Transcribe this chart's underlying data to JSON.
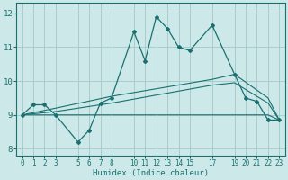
{
  "title": "",
  "xlabel": "Humidex (Indice chaleur)",
  "ylabel": "",
  "xlim": [
    -0.5,
    23.5
  ],
  "ylim": [
    7.8,
    12.3
  ],
  "yticks": [
    8,
    9,
    10,
    11,
    12
  ],
  "xticks": [
    0,
    1,
    2,
    3,
    5,
    6,
    7,
    8,
    10,
    11,
    12,
    13,
    14,
    15,
    17,
    19,
    20,
    21,
    22,
    23
  ],
  "background_color": "#cce8e8",
  "grid_color": "#aacccc",
  "line_color": "#1a7070",
  "line1_x": [
    0,
    1,
    2,
    3,
    5,
    6,
    7,
    8,
    10,
    11,
    12,
    13,
    14,
    15,
    17,
    19,
    20,
    21,
    22,
    23
  ],
  "line1_y": [
    9.0,
    9.3,
    9.3,
    9.0,
    8.2,
    8.55,
    9.35,
    9.5,
    11.45,
    10.6,
    11.9,
    11.55,
    11.0,
    10.9,
    11.65,
    10.2,
    9.5,
    9.4,
    8.85,
    8.85
  ],
  "line2_x": [
    0,
    3,
    8,
    17,
    19,
    22,
    23
  ],
  "line2_y": [
    9.0,
    9.2,
    9.55,
    10.05,
    10.2,
    9.5,
    8.85
  ],
  "line3_x": [
    0,
    3,
    8,
    17,
    19,
    22,
    23
  ],
  "line3_y": [
    9.0,
    9.1,
    9.35,
    9.88,
    9.95,
    9.35,
    8.85
  ],
  "line4_x": [
    0,
    3,
    8,
    17,
    19,
    22,
    23
  ],
  "line4_y": [
    9.0,
    9.0,
    9.0,
    9.0,
    9.0,
    9.0,
    8.85
  ],
  "figsize": [
    3.2,
    2.0
  ],
  "dpi": 100
}
